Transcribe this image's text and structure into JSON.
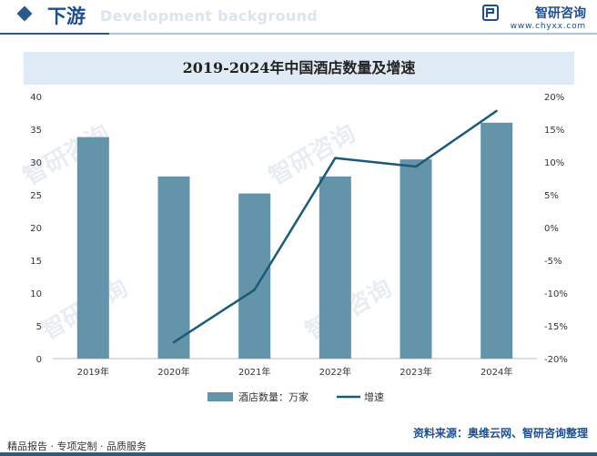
{
  "header": {
    "title": "下游",
    "ghost_text": "Development background",
    "brand_name": "智研咨询",
    "brand_url": "www.chyxx.com"
  },
  "watermark": "智研咨询",
  "chart_data": {
    "type": "bar+line",
    "title": "2019-2024年中国酒店数量及增速",
    "categories": [
      "2019年",
      "2020年",
      "2021年",
      "2022年",
      "2023年",
      "2024年"
    ],
    "series": [
      {
        "name": "酒店数量：万家",
        "type": "bar",
        "axis": "left",
        "color": "#6394aa",
        "values": [
          33.8,
          27.8,
          25.2,
          27.8,
          30.4,
          36.0
        ]
      },
      {
        "name": "增速",
        "type": "line",
        "axis": "right",
        "color": "#1b5a78",
        "values": [
          null,
          -17.5,
          -9.5,
          10.6,
          9.3,
          17.8
        ]
      }
    ],
    "y_left": {
      "min": 0,
      "max": 40,
      "step": 5,
      "ticks": [
        "0",
        "5",
        "10",
        "15",
        "20",
        "25",
        "30",
        "35",
        "40"
      ]
    },
    "y_right": {
      "min": -20,
      "max": 20,
      "step": 5,
      "ticks": [
        "-20%",
        "-15%",
        "-10%",
        "-5%",
        "0%",
        "5%",
        "10%",
        "15%",
        "20%"
      ]
    },
    "legend_position": "bottom",
    "grid": false
  },
  "footer": {
    "left": "精品报告 · 专项定制 · 品质服务",
    "source": "资料来源：奥维云网、智研咨询整理"
  }
}
